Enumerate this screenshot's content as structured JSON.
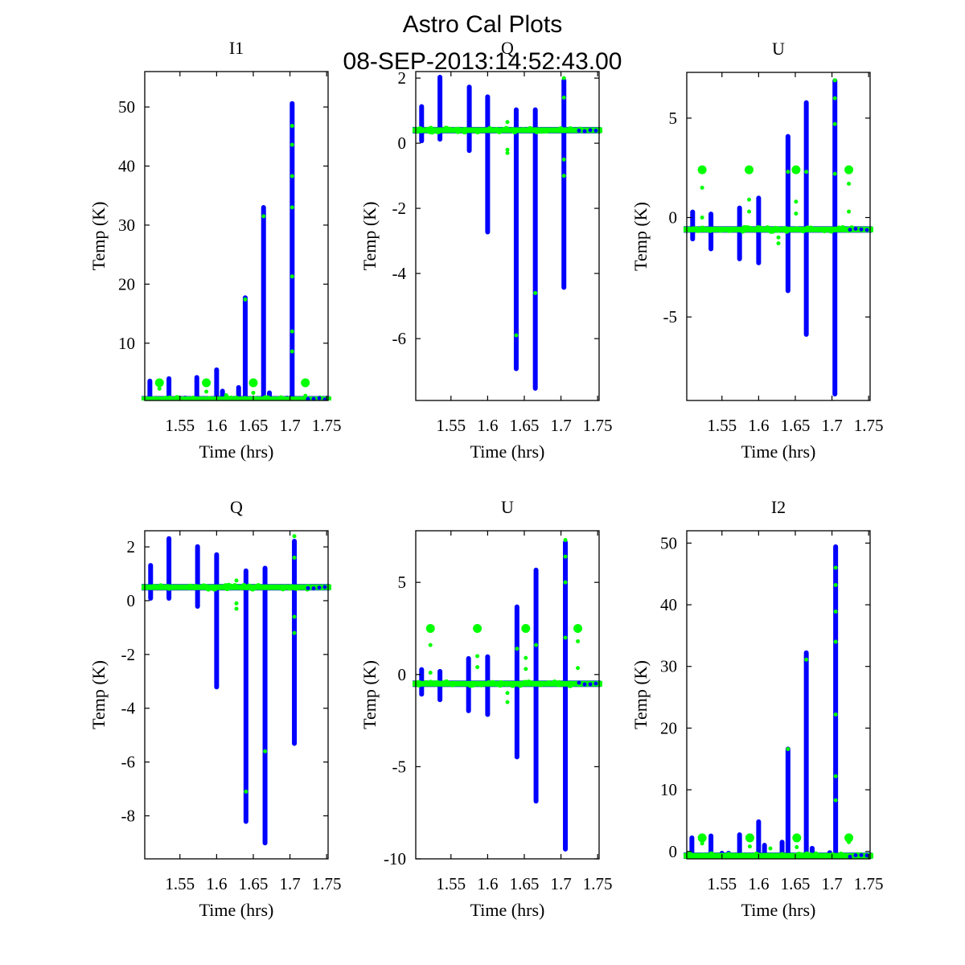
{
  "figure": {
    "title_line1": "Astro Cal Plots",
    "title_line2": "08-SEP-2013:14:52:43.00",
    "series_colors": {
      "primary": "#0000ff",
      "secondary": "#00ff00"
    }
  },
  "chart_data": [
    {
      "type": "scatter",
      "title": "I1",
      "xlabel": "Time (hrs)",
      "ylabel": "Temp (K)",
      "xlim": [
        1.502,
        1.752
      ],
      "ylim": [
        0.3,
        56
      ],
      "xticks": [
        1.55,
        1.6,
        1.65,
        1.7,
        1.75
      ],
      "xtick_labels": [
        "1.55",
        "1.6",
        "1.65",
        "1.7",
        "1.75"
      ],
      "yticks": [
        10,
        20,
        30,
        40,
        50
      ],
      "ytick_labels": [
        "10",
        "20",
        "30",
        "40",
        "50"
      ],
      "baseline": {
        "primary": 0.5,
        "secondary": 0.5
      },
      "primary_spikes": [
        {
          "x": 1.509,
          "ymin": 0.5,
          "ymax": 4.0
        },
        {
          "x": 1.535,
          "ymin": 0.5,
          "ymax": 4.4
        },
        {
          "x": 1.549,
          "ymin": 0.5,
          "ymax": 1.1
        },
        {
          "x": 1.557,
          "ymin": 0.5,
          "ymax": 1.1
        },
        {
          "x": 1.564,
          "ymin": 0.5,
          "ymax": 0.9
        },
        {
          "x": 1.573,
          "ymin": 0.5,
          "ymax": 4.6
        },
        {
          "x": 1.6,
          "ymin": 0.5,
          "ymax": 5.9
        },
        {
          "x": 1.608,
          "ymin": 0.5,
          "ymax": 2.3
        },
        {
          "x": 1.63,
          "ymin": 0.5,
          "ymax": 2.9
        },
        {
          "x": 1.639,
          "ymin": 0.5,
          "ymax": 18.1
        },
        {
          "x": 1.664,
          "ymin": 0.5,
          "ymax": 33.4
        },
        {
          "x": 1.672,
          "ymin": 0.5,
          "ymax": 2.0
        },
        {
          "x": 1.696,
          "ymin": 0.5,
          "ymax": 1.1
        },
        {
          "x": 1.703,
          "ymin": 0.5,
          "ymax": 51.0
        }
      ],
      "secondary_clusters": [
        {
          "x": 1.522,
          "y": 3.3
        },
        {
          "x": 1.586,
          "y": 3.3
        },
        {
          "x": 1.65,
          "y": 3.3
        },
        {
          "x": 1.721,
          "y": 3.3
        }
      ],
      "secondary_points": [
        {
          "x": 1.639,
          "y": 17.4
        },
        {
          "x": 1.664,
          "y": 31.5
        },
        {
          "x": 1.703,
          "y": 46.8
        },
        {
          "x": 1.703,
          "y": 43.6
        },
        {
          "x": 1.703,
          "y": 38.3
        },
        {
          "x": 1.703,
          "y": 33.0
        },
        {
          "x": 1.703,
          "y": 21.3
        },
        {
          "x": 1.703,
          "y": 12.0
        },
        {
          "x": 1.703,
          "y": 8.6
        },
        {
          "x": 1.522,
          "y": 2.3
        },
        {
          "x": 1.586,
          "y": 1.8
        },
        {
          "x": 1.65,
          "y": 1.6
        },
        {
          "x": 1.721,
          "y": 1.1
        },
        {
          "x": 1.613,
          "y": 1.2
        }
      ]
    },
    {
      "type": "scatter",
      "title": "Q",
      "xlabel": "Time (hrs)",
      "ylabel": "Temp (K)",
      "xlim": [
        1.502,
        1.752
      ],
      "ylim": [
        -7.9,
        2.2
      ],
      "xticks": [
        1.55,
        1.6,
        1.65,
        1.7,
        1.75
      ],
      "xtick_labels": [
        "1.55",
        "1.6",
        "1.65",
        "1.7",
        "1.75"
      ],
      "yticks": [
        -6,
        -4,
        -2,
        0,
        2
      ],
      "ytick_labels": [
        "-6",
        "-4",
        "-2",
        "0",
        "2"
      ],
      "baseline": {
        "primary": 0.4,
        "secondary": 0.4
      },
      "primary_spikes": [
        {
          "x": 1.51,
          "ymin": 0.0,
          "ymax": 1.2
        },
        {
          "x": 1.535,
          "ymin": 0.05,
          "ymax": 2.1
        },
        {
          "x": 1.575,
          "ymin": -0.3,
          "ymax": 1.8
        },
        {
          "x": 1.6,
          "ymin": -2.8,
          "ymax": 1.5
        },
        {
          "x": 1.639,
          "ymin": -7.0,
          "ymax": 1.1
        },
        {
          "x": 1.665,
          "ymin": -7.6,
          "ymax": 1.1
        },
        {
          "x": 1.704,
          "ymin": -4.5,
          "ymax": 2.0
        }
      ],
      "secondary_clusters": [],
      "secondary_points": [
        {
          "x": 1.627,
          "y": 0.65
        },
        {
          "x": 1.627,
          "y": -0.2
        },
        {
          "x": 1.627,
          "y": -0.3
        },
        {
          "x": 1.639,
          "y": -5.9
        },
        {
          "x": 1.665,
          "y": -4.6
        },
        {
          "x": 1.704,
          "y": 2.0
        },
        {
          "x": 1.704,
          "y": 1.4
        },
        {
          "x": 1.704,
          "y": -0.5
        },
        {
          "x": 1.704,
          "y": -1.0
        }
      ]
    },
    {
      "type": "scatter",
      "title": "U",
      "xlabel": "Time (hrs)",
      "ylabel": "Temp (K)",
      "xlim": [
        1.502,
        1.752
      ],
      "ylim": [
        -9.2,
        7.3
      ],
      "xticks": [
        1.55,
        1.6,
        1.65,
        1.7,
        1.75
      ],
      "xtick_labels": [
        "1.55",
        "1.6",
        "1.65",
        "1.7",
        "1.75"
      ],
      "yticks": [
        -5,
        0,
        5
      ],
      "ytick_labels": [
        "-5",
        "0",
        "5"
      ],
      "baseline": {
        "primary": -0.6,
        "secondary": -0.6
      },
      "primary_spikes": [
        {
          "x": 1.51,
          "ymin": -1.2,
          "ymax": 0.4
        },
        {
          "x": 1.535,
          "ymin": -1.7,
          "ymax": 0.3
        },
        {
          "x": 1.574,
          "ymin": -2.2,
          "ymax": 0.6
        },
        {
          "x": 1.6,
          "ymin": -2.4,
          "ymax": 1.1
        },
        {
          "x": 1.64,
          "ymin": -3.8,
          "ymax": 4.2
        },
        {
          "x": 1.665,
          "ymin": -6.0,
          "ymax": 5.9
        },
        {
          "x": 1.704,
          "ymin": -9.0,
          "ymax": 7.0
        }
      ],
      "secondary_clusters": [
        {
          "x": 1.523,
          "y": 2.4
        },
        {
          "x": 1.587,
          "y": 2.4
        },
        {
          "x": 1.651,
          "y": 2.4
        },
        {
          "x": 1.723,
          "y": 2.4
        }
      ],
      "secondary_points": [
        {
          "x": 1.523,
          "y": 1.5
        },
        {
          "x": 1.523,
          "y": 0.0
        },
        {
          "x": 1.587,
          "y": 0.9
        },
        {
          "x": 1.587,
          "y": 0.3
        },
        {
          "x": 1.651,
          "y": 0.8
        },
        {
          "x": 1.651,
          "y": 0.2
        },
        {
          "x": 1.723,
          "y": 1.7
        },
        {
          "x": 1.723,
          "y": 0.3
        },
        {
          "x": 1.627,
          "y": -1.0
        },
        {
          "x": 1.627,
          "y": -1.3
        },
        {
          "x": 1.64,
          "y": 2.3
        },
        {
          "x": 1.665,
          "y": 2.3
        },
        {
          "x": 1.704,
          "y": 6.9
        },
        {
          "x": 1.704,
          "y": 6.0
        },
        {
          "x": 1.704,
          "y": 4.7
        },
        {
          "x": 1.704,
          "y": 2.2
        }
      ]
    },
    {
      "type": "scatter",
      "title": "Q",
      "xlabel": "Time (hrs)",
      "ylabel": "Temp (K)",
      "xlim": [
        1.502,
        1.752
      ],
      "ylim": [
        -9.6,
        2.6
      ],
      "xticks": [
        1.55,
        1.6,
        1.65,
        1.7,
        1.75
      ],
      "xtick_labels": [
        "1.55",
        "1.6",
        "1.65",
        "1.7",
        "1.75"
      ],
      "yticks": [
        -8,
        -6,
        -4,
        -2,
        0,
        2
      ],
      "ytick_labels": [
        "-8",
        "-6",
        "-4",
        "-2",
        "0",
        "2"
      ],
      "baseline": {
        "primary": 0.5,
        "secondary": 0.5
      },
      "primary_spikes": [
        {
          "x": 1.51,
          "ymin": 0.0,
          "ymax": 1.4
        },
        {
          "x": 1.535,
          "ymin": 0.0,
          "ymax": 2.4
        },
        {
          "x": 1.574,
          "ymin": -0.3,
          "ymax": 2.1
        },
        {
          "x": 1.6,
          "ymin": -3.3,
          "ymax": 1.8
        },
        {
          "x": 1.64,
          "ymin": -8.3,
          "ymax": 1.2
        },
        {
          "x": 1.666,
          "ymin": -9.1,
          "ymax": 1.3
        },
        {
          "x": 1.706,
          "ymin": -5.4,
          "ymax": 2.3
        }
      ],
      "secondary_clusters": [],
      "secondary_points": [
        {
          "x": 1.627,
          "y": 0.75
        },
        {
          "x": 1.627,
          "y": -0.1
        },
        {
          "x": 1.627,
          "y": -0.3
        },
        {
          "x": 1.64,
          "y": -7.1
        },
        {
          "x": 1.666,
          "y": -5.6
        },
        {
          "x": 1.706,
          "y": 2.4
        },
        {
          "x": 1.706,
          "y": 1.6
        },
        {
          "x": 1.706,
          "y": -0.6
        },
        {
          "x": 1.706,
          "y": -1.2
        }
      ]
    },
    {
      "type": "scatter",
      "title": "U",
      "xlabel": "Time (hrs)",
      "ylabel": "Temp (K)",
      "xlim": [
        1.502,
        1.752
      ],
      "ylim": [
        -10.0,
        7.8
      ],
      "xticks": [
        1.55,
        1.6,
        1.65,
        1.7,
        1.75
      ],
      "xtick_labels": [
        "1.55",
        "1.6",
        "1.65",
        "1.7",
        "1.75"
      ],
      "yticks": [
        -10,
        -5,
        0,
        5
      ],
      "ytick_labels": [
        "-10",
        "-5",
        "0",
        "5"
      ],
      "baseline": {
        "primary": -0.5,
        "secondary": -0.5
      },
      "primary_spikes": [
        {
          "x": 1.51,
          "ymin": -1.2,
          "ymax": 0.4
        },
        {
          "x": 1.535,
          "ymin": -1.5,
          "ymax": 0.3
        },
        {
          "x": 1.574,
          "ymin": -2.1,
          "ymax": 1.0
        },
        {
          "x": 1.6,
          "ymin": -2.3,
          "ymax": 1.1
        },
        {
          "x": 1.64,
          "ymin": -4.6,
          "ymax": 3.8
        },
        {
          "x": 1.666,
          "ymin": -7.0,
          "ymax": 5.8
        },
        {
          "x": 1.706,
          "ymin": -9.6,
          "ymax": 7.3
        }
      ],
      "secondary_clusters": [
        {
          "x": 1.522,
          "y": 2.5
        },
        {
          "x": 1.586,
          "y": 2.5
        },
        {
          "x": 1.652,
          "y": 2.5
        },
        {
          "x": 1.723,
          "y": 2.5
        }
      ],
      "secondary_points": [
        {
          "x": 1.522,
          "y": 1.6
        },
        {
          "x": 1.522,
          "y": 0.1
        },
        {
          "x": 1.586,
          "y": 1.0
        },
        {
          "x": 1.586,
          "y": 0.4
        },
        {
          "x": 1.652,
          "y": 0.9
        },
        {
          "x": 1.652,
          "y": 0.3
        },
        {
          "x": 1.723,
          "y": 1.8
        },
        {
          "x": 1.723,
          "y": 0.35
        },
        {
          "x": 1.627,
          "y": -1.0
        },
        {
          "x": 1.627,
          "y": -1.5
        },
        {
          "x": 1.64,
          "y": 1.4
        },
        {
          "x": 1.666,
          "y": 1.6
        },
        {
          "x": 1.706,
          "y": 7.3
        },
        {
          "x": 1.706,
          "y": 6.4
        },
        {
          "x": 1.706,
          "y": 5.0
        },
        {
          "x": 1.706,
          "y": 2.0
        }
      ]
    },
    {
      "type": "scatter",
      "title": "I2",
      "xlabel": "Time (hrs)",
      "ylabel": "Temp (K)",
      "xlim": [
        1.502,
        1.752
      ],
      "ylim": [
        -1.2,
        52
      ],
      "xticks": [
        1.55,
        1.6,
        1.65,
        1.7,
        1.75
      ],
      "xtick_labels": [
        "1.55",
        "1.6",
        "1.65",
        "1.7",
        "1.75"
      ],
      "yticks": [
        0,
        10,
        20,
        30,
        40,
        50
      ],
      "ytick_labels": [
        "0",
        "10",
        "20",
        "30",
        "40",
        "50"
      ],
      "baseline": {
        "primary": -0.7,
        "secondary": -0.7
      },
      "primary_spikes": [
        {
          "x": 1.509,
          "ymin": -0.7,
          "ymax": 2.6
        },
        {
          "x": 1.535,
          "ymin": -0.7,
          "ymax": 2.9
        },
        {
          "x": 1.55,
          "ymin": -0.7,
          "ymax": 0.1
        },
        {
          "x": 1.559,
          "ymin": -0.7,
          "ymax": 0.1
        },
        {
          "x": 1.574,
          "ymin": -0.7,
          "ymax": 3.1
        },
        {
          "x": 1.6,
          "ymin": -0.7,
          "ymax": 5.2
        },
        {
          "x": 1.608,
          "ymin": -0.7,
          "ymax": 1.4
        },
        {
          "x": 1.632,
          "ymin": -0.7,
          "ymax": 1.9
        },
        {
          "x": 1.64,
          "ymin": -0.7,
          "ymax": 17.0
        },
        {
          "x": 1.665,
          "ymin": -0.7,
          "ymax": 32.6
        },
        {
          "x": 1.673,
          "ymin": -0.7,
          "ymax": 0.9
        },
        {
          "x": 1.697,
          "ymin": -0.7,
          "ymax": 0.2
        },
        {
          "x": 1.705,
          "ymin": -0.7,
          "ymax": 49.8
        }
      ],
      "secondary_clusters": [
        {
          "x": 1.523,
          "y": 2.2
        },
        {
          "x": 1.588,
          "y": 2.2
        },
        {
          "x": 1.652,
          "y": 2.2
        },
        {
          "x": 1.723,
          "y": 2.2
        }
      ],
      "secondary_points": [
        {
          "x": 1.64,
          "y": 16.6
        },
        {
          "x": 1.665,
          "y": 31.1
        },
        {
          "x": 1.705,
          "y": 46.0
        },
        {
          "x": 1.705,
          "y": 43.2
        },
        {
          "x": 1.705,
          "y": 38.9
        },
        {
          "x": 1.705,
          "y": 34.0
        },
        {
          "x": 1.705,
          "y": 22.2
        },
        {
          "x": 1.705,
          "y": 12.2
        },
        {
          "x": 1.705,
          "y": 8.3
        },
        {
          "x": 1.523,
          "y": 1.3
        },
        {
          "x": 1.588,
          "y": 0.8
        },
        {
          "x": 1.652,
          "y": 0.7
        },
        {
          "x": 1.723,
          "y": 1.5
        },
        {
          "x": 1.616,
          "y": 0.5
        }
      ]
    }
  ]
}
